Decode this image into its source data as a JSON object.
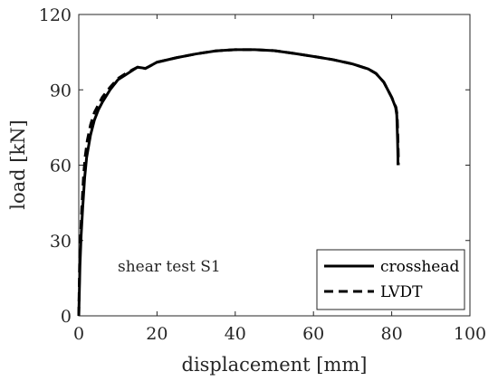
{
  "chart_data": {
    "type": "line",
    "title": "",
    "xlabel": "displacement [mm]",
    "ylabel": "load [kN]",
    "xlim": [
      0,
      100
    ],
    "ylim": [
      0,
      120
    ],
    "xticks": [
      0,
      20,
      40,
      60,
      80,
      100
    ],
    "yticks": [
      0,
      30,
      60,
      90,
      120
    ],
    "grid": false,
    "legend_position": "bottom-right",
    "annotation": "shear test S1",
    "series": [
      {
        "name": "crosshead",
        "style": "solid",
        "color": "#000000",
        "x": [
          0,
          0.3,
          0.6,
          1,
          1.5,
          2,
          3,
          4,
          5,
          6,
          8,
          10,
          12,
          14,
          15,
          16,
          17,
          18,
          20,
          25,
          30,
          35,
          40,
          45,
          50,
          55,
          60,
          65,
          70,
          74,
          76,
          78,
          79,
          80,
          80.5,
          81,
          81.3,
          81.5,
          81.6,
          81.6
        ],
        "y": [
          0,
          20,
          32,
          43,
          55,
          63,
          72,
          78,
          82,
          85,
          90,
          94,
          96,
          98,
          99,
          98.8,
          98.5,
          99.3,
          101,
          102.8,
          104.3,
          105.5,
          106,
          106,
          105.6,
          104.5,
          103.3,
          102,
          100.3,
          98.3,
          96.5,
          93,
          90,
          87,
          85,
          83,
          80,
          70,
          63,
          60
        ]
      },
      {
        "name": "LVDT",
        "style": "dashed",
        "color": "#000000",
        "x": [
          0,
          0.2,
          0.5,
          0.8,
          1.2,
          1.6,
          2.2,
          3,
          4,
          5,
          6,
          8,
          10,
          12,
          14,
          15,
          16,
          17,
          18,
          20,
          25,
          30,
          35,
          40,
          45,
          50,
          55,
          60,
          65,
          70,
          74,
          76,
          78,
          79,
          80,
          80.6,
          81.1,
          81.4,
          81.6,
          81.7,
          81.7
        ],
        "y": [
          0,
          20,
          33,
          44,
          55,
          63,
          70,
          76,
          81,
          84,
          87,
          91,
          94.5,
          96.5,
          98.2,
          99,
          98.8,
          98.5,
          99.3,
          101,
          102.8,
          104.3,
          105.5,
          106,
          106,
          105.6,
          104.5,
          103.3,
          102,
          100.3,
          98.3,
          96.5,
          93,
          90,
          87,
          85,
          83,
          80,
          70,
          63,
          60
        ]
      }
    ]
  }
}
